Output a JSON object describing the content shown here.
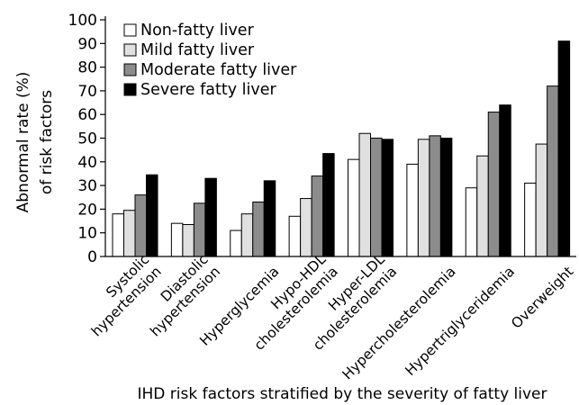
{
  "chart_data": {
    "type": "bar",
    "title": "",
    "xlabel": "IHD risk factors stratified by the severity of fatty liver",
    "ylabel": [
      "Abnormal rate (%)",
      "of risk factors"
    ],
    "ylim": [
      0,
      100
    ],
    "yticks": [
      0,
      10,
      20,
      30,
      40,
      50,
      60,
      70,
      80,
      90,
      100
    ],
    "grid": false,
    "legend": "top-left",
    "categories": [
      [
        "Systolic",
        "hypertension"
      ],
      [
        "Diastolic",
        "hypertension"
      ],
      [
        "Hyperglycemia"
      ],
      [
        "Hypo-HDL",
        "cholesterolemia"
      ],
      [
        "Hyper-LDL",
        "cholesterolemia"
      ],
      [
        "Hypercholesterolemia"
      ],
      [
        "Hypertriglyceridemia"
      ],
      [
        "Overweight"
      ]
    ],
    "series": [
      {
        "name": "Non-fatty liver",
        "color": "#ffffff",
        "values": [
          18,
          14,
          11,
          17,
          41,
          39,
          29,
          31
        ]
      },
      {
        "name": "Mild fatty liver",
        "color": "#e0e0e0",
        "values": [
          19.5,
          13.5,
          18,
          24.5,
          52,
          49.5,
          42.5,
          47.5
        ]
      },
      {
        "name": "Moderate fatty liver",
        "color": "#8c8c8c",
        "values": [
          26,
          22.5,
          23,
          34,
          50,
          51,
          61,
          72
        ]
      },
      {
        "name": "Severe fatty liver",
        "color": "#000000",
        "values": [
          34.5,
          33,
          32,
          43.5,
          49.5,
          50,
          64,
          91
        ]
      }
    ]
  }
}
